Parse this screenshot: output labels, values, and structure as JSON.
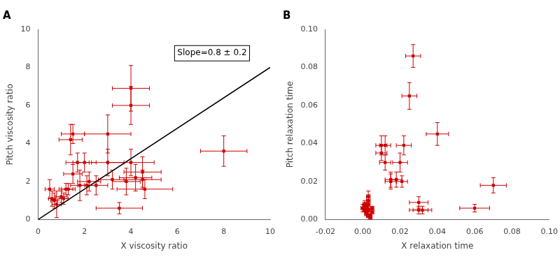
{
  "chart_data": [
    {
      "type": "scatter",
      "title": "A",
      "xlabel": "X viscosity ratio",
      "ylabel": "Pitch viscosity ratio",
      "xlim": [
        0,
        10
      ],
      "ylim": [
        0,
        10
      ],
      "xticks": [
        0,
        2,
        4,
        6,
        8,
        10
      ],
      "yticks": [
        0,
        2,
        4,
        6,
        8,
        10
      ],
      "grid": false,
      "annotation": "Slope=0.8 ± 0.2",
      "series": [
        {
          "type": "scatter",
          "color": "#cc0000",
          "marker": "square",
          "x": [
            0.5,
            0.6,
            0.7,
            0.8,
            1.0,
            1.1,
            1.2,
            1.3,
            1.4,
            1.5,
            1.5,
            1.7,
            1.8,
            2.0,
            2.1,
            2.2,
            2.5,
            3.0,
            3.0,
            3.2,
            3.5,
            3.8,
            4.0,
            4.0,
            4.0,
            4.2,
            4.5,
            4.5,
            4.6,
            8.0
          ],
          "values": [
            1.6,
            1.1,
            1.0,
            0.8,
            1.2,
            1.1,
            1.6,
            1.6,
            4.2,
            4.5,
            2.4,
            3.0,
            1.8,
            3.0,
            1.8,
            2.0,
            1.8,
            4.5,
            3.0,
            2.1,
            0.6,
            2.0,
            6.9,
            6.0,
            3.0,
            2.2,
            2.5,
            2.1,
            1.6,
            3.6
          ],
          "xerr": [
            0.2,
            0.15,
            0.15,
            0.2,
            0.25,
            0.2,
            0.3,
            0.3,
            0.5,
            0.5,
            0.4,
            0.5,
            0.4,
            0.5,
            0.4,
            0.5,
            0.5,
            1.0,
            0.7,
            0.6,
            1.0,
            0.6,
            0.8,
            0.8,
            1.0,
            0.7,
            0.8,
            0.8,
            1.2,
            1.0
          ],
          "yerr": [
            0.5,
            0.4,
            0.4,
            0.7,
            0.3,
            0.3,
            0.3,
            0.3,
            0.8,
            0.5,
            0.5,
            0.5,
            0.8,
            0.5,
            0.5,
            0.5,
            0.5,
            1.0,
            0.7,
            0.5,
            0.3,
            0.7,
            1.2,
            1.0,
            0.7,
            0.7,
            0.8,
            0.5,
            0.5,
            0.8
          ]
        },
        {
          "type": "line",
          "color": "black",
          "line_style": "solid",
          "x": [
            0,
            10
          ],
          "values": [
            0,
            8
          ]
        }
      ]
    },
    {
      "type": "scatter",
      "title": "B",
      "xlabel": "X relaxation time",
      "ylabel": "Pitch relaxation time",
      "xlim": [
        -0.02,
        0.1
      ],
      "ylim": [
        0,
        0.1
      ],
      "xticks": [
        {
          "value": -0.02,
          "label": "-0.02"
        },
        {
          "value": 0,
          "label": "0.00"
        },
        {
          "value": 0.02,
          "label": "0.02"
        },
        {
          "value": 0.04,
          "label": "0.04"
        },
        {
          "value": 0.06,
          "label": "0.06"
        },
        {
          "value": 0.08,
          "label": "0.08"
        },
        {
          "value": 0.1,
          "label": "0.10"
        }
      ],
      "yticks": [
        {
          "value": 0,
          "label": "0.00"
        },
        {
          "value": 0.02,
          "label": "0.02"
        },
        {
          "value": 0.04,
          "label": "0.04"
        },
        {
          "value": 0.06,
          "label": "0.06"
        },
        {
          "value": 0.08,
          "label": "0.08"
        },
        {
          "value": 0.1,
          "label": "0.10"
        }
      ],
      "grid": false,
      "series": [
        {
          "type": "scatter",
          "color": "#cc0000",
          "marker": "square",
          "x": [
            0.0,
            0.001,
            0.001,
            0.001,
            0.001,
            0.002,
            0.002,
            0.002,
            0.002,
            0.002,
            0.003,
            0.003,
            0.003,
            0.003,
            0.003,
            0.004,
            0.004,
            0.005,
            0.005,
            0.01,
            0.01,
            0.012,
            0.012,
            0.015,
            0.015,
            0.018,
            0.02,
            0.021,
            0.022,
            0.025,
            0.027,
            0.03,
            0.03,
            0.032,
            0.04,
            0.06,
            0.07
          ],
          "values": [
            0.006,
            0.007,
            0.006,
            0.005,
            0.008,
            0.007,
            0.006,
            0.005,
            0.004,
            0.003,
            0.01,
            0.012,
            0.008,
            0.005,
            0.002,
            0.002,
            0.001,
            0.006,
            0.004,
            0.039,
            0.035,
            0.039,
            0.03,
            0.021,
            0.02,
            0.021,
            0.03,
            0.02,
            0.039,
            0.065,
            0.086,
            0.009,
            0.005,
            0.005,
            0.045,
            0.006,
            0.018
          ],
          "xerr": [
            0.001,
            0.001,
            0.001,
            0.001,
            0.001,
            0.001,
            0.001,
            0.001,
            0.001,
            0.001,
            0.001,
            0.001,
            0.001,
            0.001,
            0.001,
            0.001,
            0.001,
            0.001,
            0.001,
            0.003,
            0.003,
            0.003,
            0.003,
            0.003,
            0.003,
            0.003,
            0.004,
            0.003,
            0.004,
            0.004,
            0.004,
            0.005,
            0.005,
            0.005,
            0.006,
            0.008,
            0.007
          ],
          "yerr": [
            0.002,
            0.002,
            0.002,
            0.001,
            0.002,
            0.002,
            0.002,
            0.001,
            0.001,
            0.001,
            0.003,
            0.003,
            0.002,
            0.001,
            0.001,
            0.001,
            0.001,
            0.001,
            0.001,
            0.005,
            0.004,
            0.005,
            0.004,
            0.004,
            0.004,
            0.004,
            0.005,
            0.003,
            0.005,
            0.007,
            0.006,
            0.003,
            0.002,
            0.002,
            0.006,
            0.002,
            0.004
          ]
        }
      ]
    }
  ]
}
